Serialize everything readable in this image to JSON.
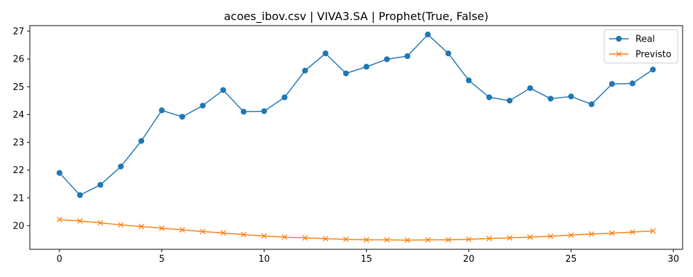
{
  "chart_data": {
    "type": "line",
    "title": "acoes_ibov.csv | VIVA3.SA | Prophet(True, False)",
    "xlabel": "",
    "ylabel": "",
    "x": [
      0,
      1,
      2,
      3,
      4,
      5,
      6,
      7,
      8,
      9,
      10,
      11,
      12,
      13,
      14,
      15,
      16,
      17,
      18,
      19,
      20,
      21,
      22,
      23,
      24,
      25,
      26,
      27,
      28,
      29
    ],
    "xlim": [
      -1.45,
      30.45
    ],
    "ylim": [
      19.15,
      27.2
    ],
    "xticks": [
      0,
      5,
      10,
      15,
      20,
      25,
      30
    ],
    "xtick_labels": [
      "0",
      "5",
      "10",
      "15",
      "20",
      "25",
      "30"
    ],
    "yticks": [
      20,
      21,
      22,
      23,
      24,
      25,
      26,
      27
    ],
    "ytick_labels": [
      "20",
      "21",
      "22",
      "23",
      "24",
      "25",
      "26",
      "27"
    ],
    "grid": false,
    "legend_position": "top-right",
    "series": [
      {
        "name": "Real",
        "color": "#1f77b4",
        "marker": "circle",
        "values": [
          21.9,
          21.1,
          21.47,
          22.13,
          23.05,
          24.15,
          23.92,
          24.32,
          24.88,
          24.1,
          24.12,
          24.62,
          25.58,
          26.2,
          25.48,
          25.72,
          25.99,
          26.1,
          26.88,
          26.2,
          25.23,
          24.62,
          24.5,
          24.95,
          24.57,
          24.65,
          24.37,
          25.1,
          25.12,
          25.62
        ]
      },
      {
        "name": "Previsto",
        "color": "#ff7f0e",
        "marker": "x",
        "values": [
          20.22,
          20.17,
          20.1,
          20.03,
          19.97,
          19.91,
          19.85,
          19.79,
          19.74,
          19.68,
          19.63,
          19.59,
          19.56,
          19.53,
          19.51,
          19.49,
          19.49,
          19.48,
          19.49,
          19.49,
          19.51,
          19.54,
          19.56,
          19.59,
          19.62,
          19.66,
          19.7,
          19.73,
          19.77,
          19.81
        ]
      }
    ]
  }
}
